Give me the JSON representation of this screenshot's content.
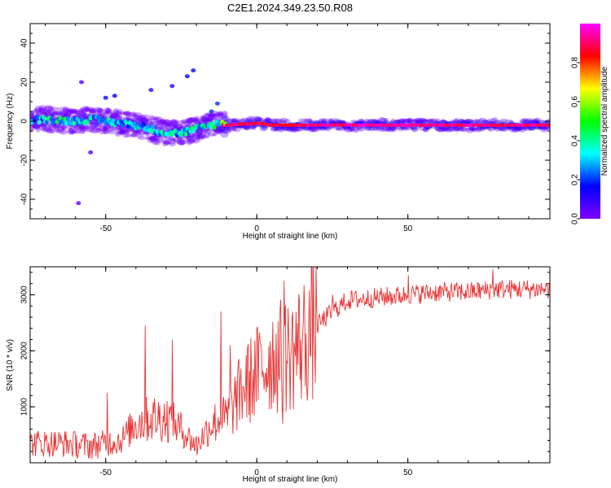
{
  "figure": {
    "title": "C2E1.2024.349.23.50.R08"
  },
  "chart_data": [
    {
      "type": "heatmap",
      "name": "spectrogram",
      "xlabel": "Height of straight line (km)",
      "ylabel": "Frequency (Hz)",
      "xlim": [
        -75,
        97
      ],
      "ylim": [
        -50,
        50
      ],
      "xticks": [
        "-50",
        "0",
        "50"
      ],
      "xtick_values": [
        -50,
        0,
        50
      ],
      "yticks": [
        "40",
        "20",
        "0",
        "-20",
        "-40"
      ],
      "ytick_values": [
        40,
        20,
        0,
        -20,
        -40
      ],
      "grid": false,
      "colorbar": {
        "label": "Normalized spectral amplitude",
        "range": [
          0,
          1
        ],
        "ticks": [
          "0.0",
          "0.2",
          "0.4",
          "0.6",
          "0.8"
        ],
        "tick_values": [
          0,
          0.2,
          0.4,
          0.6,
          0.8
        ],
        "colormap": [
          "#8000ff",
          "#0000ff",
          "#00ffff",
          "#00ff00",
          "#ffff00",
          "#ff0000",
          "#ff00ff"
        ]
      },
      "ridge": {
        "x": [
          -75,
          -70,
          -65,
          -60,
          -55,
          -50,
          -45,
          -40,
          -35,
          -30,
          -25,
          -20,
          -15,
          -12,
          -10,
          0,
          5,
          10,
          20,
          40,
          60,
          80,
          95
        ],
        "y": [
          0,
          1,
          0.5,
          0,
          1,
          0,
          -1,
          -2,
          -4,
          -6,
          -6,
          -4,
          -2,
          -1,
          -2,
          -1,
          -2,
          -2,
          -2,
          -2,
          -2,
          -2,
          -2
        ],
        "amplitude": [
          0.25,
          0.3,
          0.35,
          0.3,
          0.3,
          0.3,
          0.3,
          0.3,
          0.3,
          0.3,
          0.3,
          0.35,
          0.35,
          0.4,
          0.9,
          0.9,
          0.9,
          0.9,
          0.95,
          0.95,
          0.95,
          0.95,
          0.95
        ]
      },
      "outliers": [
        {
          "x": -50,
          "y": 12,
          "amplitude": 0.15
        },
        {
          "x": -47,
          "y": 13,
          "amplitude": 0.15
        },
        {
          "x": -35,
          "y": 16,
          "amplitude": 0.1
        },
        {
          "x": -28,
          "y": 18,
          "amplitude": 0.1
        },
        {
          "x": -23,
          "y": 23,
          "amplitude": 0.15
        },
        {
          "x": -21,
          "y": 26,
          "amplitude": 0.15
        },
        {
          "x": -15,
          "y": 5,
          "amplitude": 0.2
        },
        {
          "x": -13,
          "y": 9,
          "amplitude": 0.2
        },
        {
          "x": -58,
          "y": 20,
          "amplitude": 0.05
        },
        {
          "x": -55,
          "y": -16,
          "amplitude": 0.05
        },
        {
          "x": -59,
          "y": -42,
          "amplitude": 0.03
        }
      ]
    },
    {
      "type": "line",
      "name": "snr",
      "xlabel": "Height of straight line (km)",
      "ylabel": "SNR (10 * v/v)",
      "xlim": [
        -75,
        97
      ],
      "ylim": [
        0,
        3500
      ],
      "xticks": [
        "-50",
        "0",
        "50"
      ],
      "xtick_values": [
        -50,
        0,
        50
      ],
      "yticks": [
        "1000",
        "2000",
        "3000"
      ],
      "ytick_values": [
        1000,
        2000,
        3000
      ],
      "grid": false,
      "color": "#e83535",
      "trend": {
        "x": [
          -75,
          -65,
          -55,
          -45,
          -40,
          -35,
          -30,
          -25,
          -20,
          -15,
          -10,
          -5,
          0,
          5,
          10,
          15,
          20,
          25,
          30,
          40,
          50,
          60,
          70,
          80,
          90,
          97
        ],
        "y": [
          350,
          350,
          300,
          400,
          700,
          800,
          800,
          600,
          300,
          700,
          800,
          1300,
          1600,
          1900,
          1900,
          2150,
          2450,
          2700,
          2900,
          2950,
          3000,
          3050,
          3050,
          3100,
          3100,
          3100
        ]
      },
      "spikes": [
        {
          "x": -49.5,
          "y": 1250
        },
        {
          "x": -37,
          "y": 2450
        },
        {
          "x": -28,
          "y": 2200
        },
        {
          "x": -12,
          "y": 2700
        },
        {
          "x": -9,
          "y": 2100
        },
        {
          "x": 9,
          "y": 3250
        },
        {
          "x": 8.5,
          "y": 700
        },
        {
          "x": 25,
          "y": 3000
        },
        {
          "x": 50,
          "y": 3350
        },
        {
          "x": 78,
          "y": 3450
        }
      ]
    }
  ]
}
